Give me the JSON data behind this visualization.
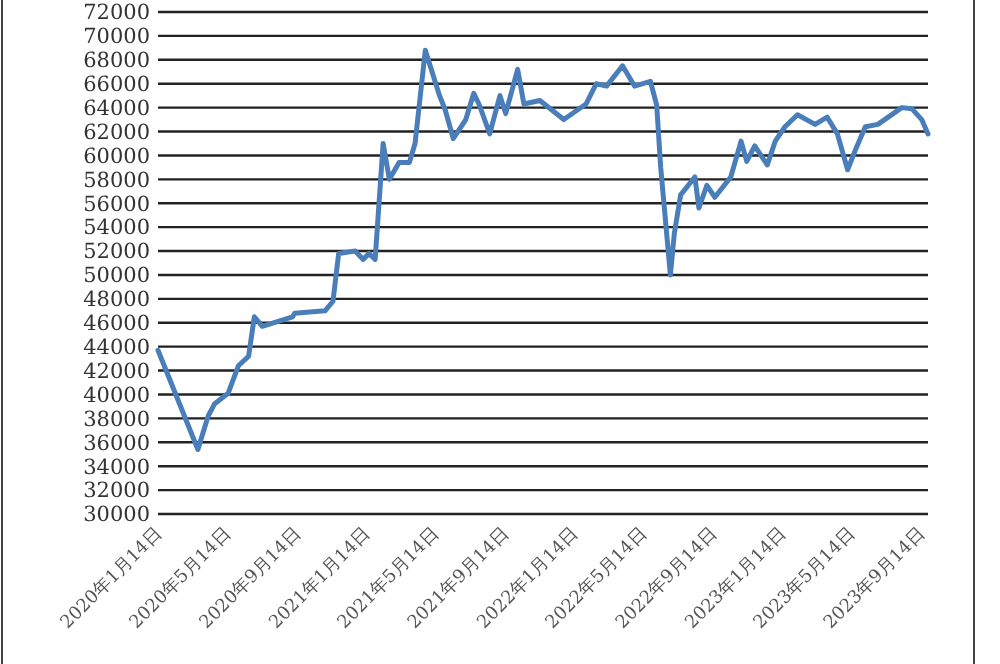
{
  "chart_data": {
    "type": "line",
    "grid": "y",
    "marker": "none",
    "line_style": "solid",
    "xlim": [
      "2020-01-14",
      "2023-09-26"
    ],
    "xticks": [
      {
        "value": "2020-01-14",
        "label": "2020年1月14日"
      },
      {
        "value": "2020-05-14",
        "label": "2020年5月14日"
      },
      {
        "value": "2020-09-14",
        "label": "2020年9月14日"
      },
      {
        "value": "2021-01-14",
        "label": "2021年1月14日"
      },
      {
        "value": "2021-05-14",
        "label": "2021年5月14日"
      },
      {
        "value": "2021-09-14",
        "label": "2021年9月14日"
      },
      {
        "value": "2022-01-14",
        "label": "2022年1月14日"
      },
      {
        "value": "2022-05-14",
        "label": "2022年5月14日"
      },
      {
        "value": "2022-09-14",
        "label": "2022年9月14日"
      },
      {
        "value": "2023-01-14",
        "label": "2023年1月14日"
      },
      {
        "value": "2023-05-14",
        "label": "2023年5月14日"
      },
      {
        "value": "2023-09-14",
        "label": "2023年9月14日"
      }
    ],
    "ylim": [
      30000,
      72000
    ],
    "yticks": [
      30000,
      32000,
      34000,
      36000,
      38000,
      40000,
      42000,
      44000,
      46000,
      48000,
      50000,
      52000,
      54000,
      56000,
      58000,
      60000,
      62000,
      64000,
      66000,
      68000,
      70000,
      72000
    ],
    "series": [
      {
        "color": "#4a7ebb",
        "x": [
          "2020-01-14",
          "2020-03-24",
          "2020-04-11",
          "2020-04-22",
          "2020-05-16",
          "2020-06-03",
          "2020-06-21",
          "2020-07-01",
          "2020-07-15",
          "2020-09-06",
          "2020-09-10",
          "2020-11-02",
          "2020-11-16",
          "2020-11-26",
          "2020-12-25",
          "2021-01-08",
          "2021-01-18",
          "2021-01-29",
          "2021-02-12",
          "2021-02-23",
          "2021-03-12",
          "2021-03-30",
          "2021-04-09",
          "2021-04-27",
          "2021-05-22",
          "2021-06-01",
          "2021-06-15",
          "2021-07-07",
          "2021-07-21",
          "2021-07-31",
          "2021-08-18",
          "2021-09-05",
          "2021-09-15",
          "2021-10-06",
          "2021-10-17",
          "2021-11-14",
          "2021-12-26",
          "2022-02-03",
          "2022-02-21",
          "2022-03-11",
          "2022-04-08",
          "2022-04-29",
          "2022-05-27",
          "2022-06-07",
          "2022-06-14",
          "2022-07-01",
          "2022-07-08",
          "2022-07-19",
          "2022-08-13",
          "2022-08-20",
          "2022-09-03",
          "2022-09-17",
          "2022-10-15",
          "2022-11-02",
          "2022-11-12",
          "2022-11-26",
          "2022-12-18",
          "2023-01-01",
          "2023-01-18",
          "2023-02-09",
          "2023-03-12",
          "2023-04-02",
          "2023-04-20",
          "2023-05-08",
          "2023-05-22",
          "2023-06-08",
          "2023-06-30",
          "2023-08-11",
          "2023-08-29",
          "2023-09-15",
          "2023-09-26"
        ],
        "values": [
          43700,
          35400,
          38200,
          39200,
          40100,
          42400,
          43200,
          46500,
          45700,
          46500,
          46800,
          47000,
          47800,
          51800,
          52000,
          51300,
          51800,
          51300,
          61000,
          58000,
          59400,
          59400,
          61000,
          68800,
          65000,
          63800,
          61400,
          63000,
          65200,
          64200,
          61800,
          65000,
          63500,
          67200,
          64300,
          64600,
          63000,
          64300,
          66000,
          65800,
          67500,
          65800,
          66200,
          64200,
          59000,
          50000,
          53500,
          56700,
          58200,
          55600,
          57500,
          56500,
          58200,
          61200,
          59500,
          60800,
          59200,
          61200,
          62400,
          63400,
          62600,
          63200,
          61800,
          58800,
          60500,
          62400,
          62600,
          64000,
          63900,
          63000,
          61800
        ]
      }
    ]
  }
}
